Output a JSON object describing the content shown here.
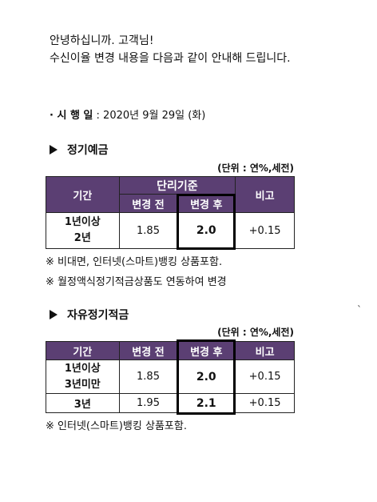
{
  "greeting": {
    "line1": "안녕하십니까. 고객님!",
    "line2": "수신이율 변경 내용을 다음과 같이 안내해 드립니다."
  },
  "effective": {
    "prefix": "· 시 행 일",
    "date": " : 2020년 9월 29일 (화)"
  },
  "section1": {
    "title": "정기예금",
    "unit": "(단위 : 연%,세전)",
    "headers": {
      "period": "기간",
      "basis": "단리기준",
      "before": "변경 전",
      "after": "변경 후",
      "note": "비고"
    },
    "rows": [
      {
        "period_line1": "1년이상",
        "period_line2": "2년",
        "before": "1.85",
        "after": "2.0",
        "note": "+0.15"
      }
    ],
    "notes": [
      "※ 비대면, 인터넷(스마트)뱅킹 상품포함.",
      "※ 월정액식정기적금상품도 연동하여 변경"
    ]
  },
  "section2": {
    "title": "자유정기적금",
    "unit": "(단위 : 연%,세전)",
    "headers": {
      "period": "기간",
      "before": "변경 전",
      "after": "변경 후",
      "note": "비고"
    },
    "rows": [
      {
        "period_line1": "1년이상",
        "period_line2": "3년미만",
        "before": "1.85",
        "after": "2.0",
        "note": "+0.15"
      },
      {
        "period_line1": "3년",
        "period_line2": "",
        "before": "1.95",
        "after": "2.1",
        "note": "+0.15"
      }
    ],
    "notes": [
      "※ 인터넷(스마트)뱅킹 상품포함."
    ]
  },
  "stray_mark": "`",
  "colors": {
    "header_bg": "#5b3f73",
    "header_text": "#ffffff",
    "highlight_border": "#000000"
  }
}
